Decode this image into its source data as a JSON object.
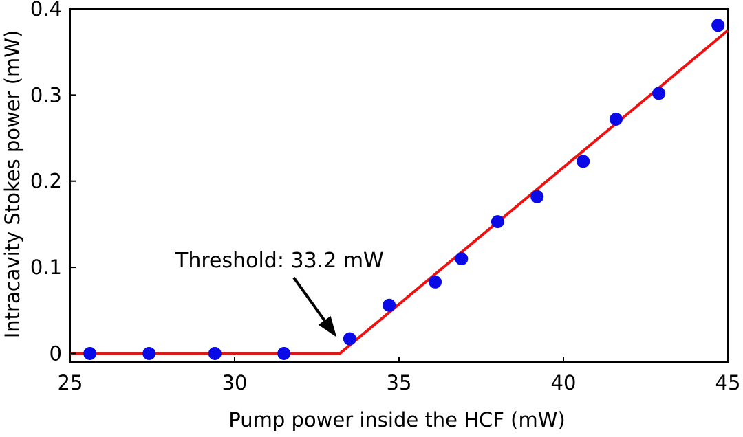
{
  "chart_data": {
    "type": "scatter",
    "title": "",
    "xlabel": "Pump power inside the HCF (mW)",
    "ylabel": "Intracavity Stokes power (mW)",
    "xlim": [
      25,
      45
    ],
    "ylim": [
      -0.01,
      0.4
    ],
    "xticks": [
      25,
      30,
      35,
      40,
      45
    ],
    "xtick_labels": [
      "25",
      "30",
      "35",
      "40",
      "45"
    ],
    "yticks": [
      0,
      0.1,
      0.2,
      0.3,
      0.4
    ],
    "ytick_labels": [
      "0",
      "0.1",
      "0.2",
      "0.3",
      "0.4"
    ],
    "grid": false,
    "legend": "none",
    "series": [
      {
        "kind": "scatter",
        "color": "#0a0ae6",
        "x": [
          25.6,
          27.4,
          29.4,
          31.5,
          33.5,
          34.7,
          36.1,
          36.9,
          38.0,
          39.2,
          40.6,
          41.6,
          42.9,
          44.7
        ],
        "y": [
          0.0,
          0.0,
          0.0,
          0.0,
          0.017,
          0.056,
          0.083,
          0.11,
          0.153,
          0.182,
          0.223,
          0.272,
          0.302,
          0.381
        ]
      },
      {
        "kind": "line",
        "color": "#ee1111",
        "x": [
          25.0,
          33.2,
          45.0
        ],
        "y": [
          0.0,
          0.0,
          0.375
        ]
      }
    ],
    "annotations": [
      {
        "text": "Threshold: 33.2 mW",
        "arrow_from": [
          31.8,
          0.088
        ],
        "arrow_to": [
          33.1,
          0.019
        ]
      }
    ]
  }
}
